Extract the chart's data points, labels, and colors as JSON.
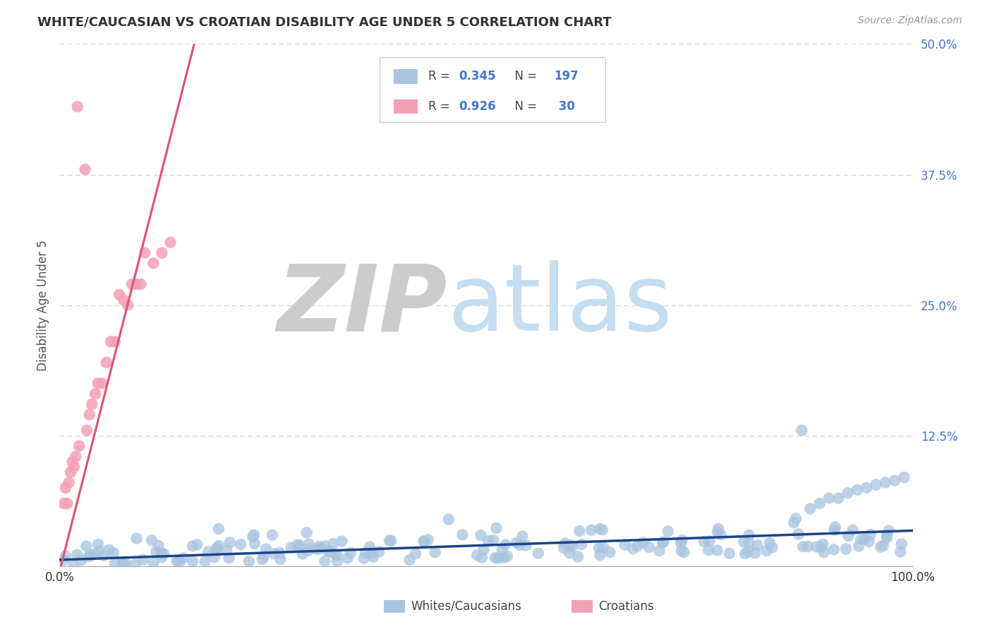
{
  "title": "WHITE/CAUCASIAN VS CROATIAN DISABILITY AGE UNDER 5 CORRELATION CHART",
  "source": "Source: ZipAtlas.com",
  "ylabel": "Disability Age Under 5",
  "xlim": [
    0,
    1.0
  ],
  "ylim": [
    0,
    0.5
  ],
  "yticks": [
    0.125,
    0.25,
    0.375,
    0.5
  ],
  "ytick_labels": [
    "12.5%",
    "25.0%",
    "37.5%",
    "50.0%"
  ],
  "xticks": [
    0,
    1.0
  ],
  "xtick_labels": [
    "0.0%",
    "100.0%"
  ],
  "blue_R": 0.345,
  "blue_N": 197,
  "pink_R": 0.926,
  "pink_N": 30,
  "blue_color": "#a8c4e0",
  "blue_line_color": "#1a4488",
  "pink_color": "#f4a0b5",
  "pink_line_color": "#e05575",
  "title_color": "#333333",
  "label_color": "#4477cc",
  "zip_watermark_color": "#cccccc",
  "atlas_watermark_color": "#c5ddf0",
  "background_color": "#ffffff",
  "grid_color": "#bbbbbb",
  "source_color": "#999999",
  "seed": 42
}
